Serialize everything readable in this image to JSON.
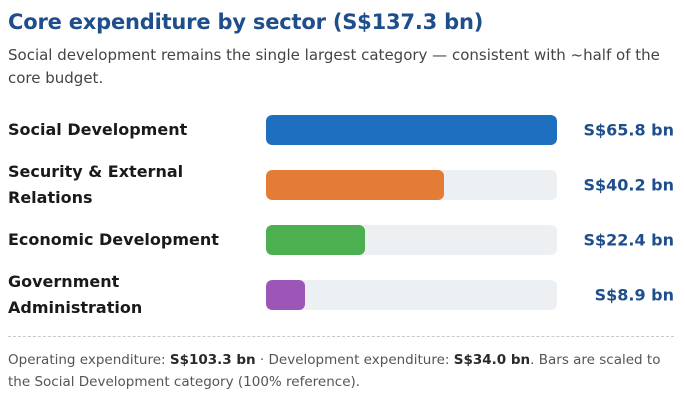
{
  "header": {
    "title": "Core expenditure by sector (S$137.3 bn)",
    "subtitle": "Social development remains the single largest category — consistent with ~half of the core budget."
  },
  "chart_data": {
    "type": "bar",
    "orientation": "horizontal",
    "categories": [
      "Social Development",
      "Security & External Relations",
      "Economic Development",
      "Government Administration"
    ],
    "values": [
      65.8,
      40.2,
      22.4,
      8.9
    ],
    "value_labels": [
      "S$65.8 bn",
      "S$40.2 bn",
      "S$22.4 bn",
      "S$8.9 bn"
    ],
    "unit": "S$ bn",
    "xlim": [
      0,
      65.8
    ],
    "colors": [
      "#1f6fc0",
      "#e47c35",
      "#4caf50",
      "#9c56b8"
    ],
    "track_color": "#edf0f3",
    "grid": false,
    "legend": "none"
  },
  "footnote": {
    "op_label": "Operating expenditure: ",
    "op_value": "S$103.3 bn",
    "sep": " · Development expenditure: ",
    "dev_value": "S$34.0 bn",
    "rest": ". Bars are scaled to the Social Development category (100% reference)."
  }
}
